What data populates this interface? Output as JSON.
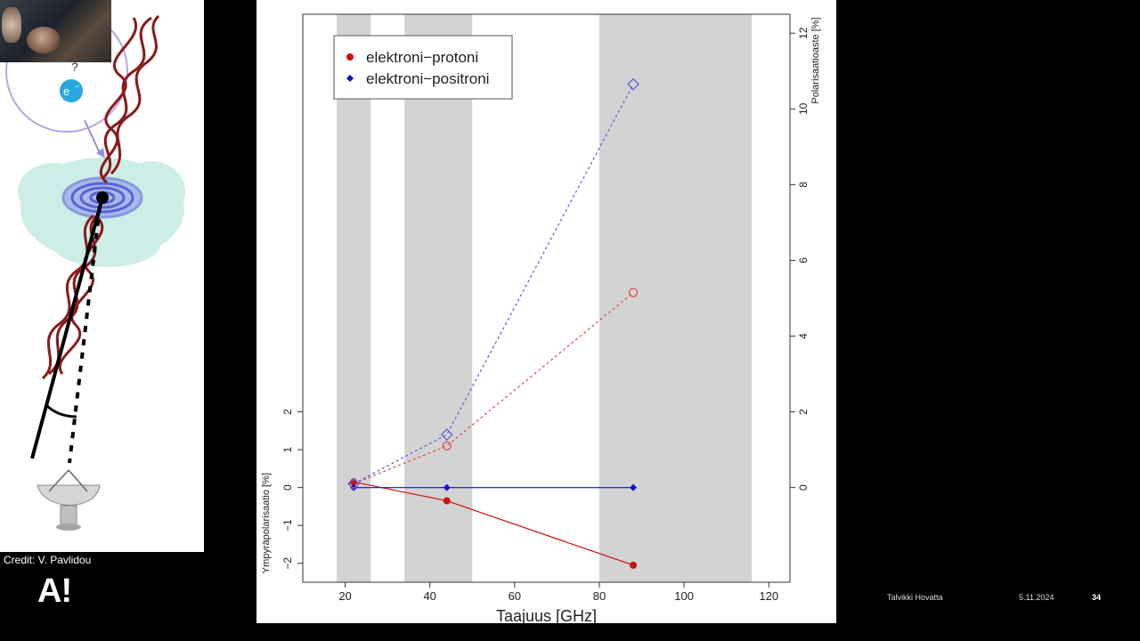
{
  "left_panel": {
    "electron_label": "e",
    "electron_sup": "−",
    "question_mark": "?",
    "credit": "Credit: V. Pavlidou",
    "logo": "A!"
  },
  "footer": {
    "author": "Talvikki Hovatta",
    "date": "5.11.2024",
    "page": "34"
  },
  "chart_data": {
    "type": "scatter",
    "xlabel": "Taajuus [GHz]",
    "ylabel_left": "Ympyräpolarisaatio [%]",
    "ylabel_right": "Polarisaatioaste [%]",
    "xlim": [
      10,
      125
    ],
    "x_ticks": [
      20,
      40,
      60,
      80,
      100,
      120
    ],
    "ylim_left": [
      -2.5,
      12.5
    ],
    "y_ticks_left": [
      -2,
      -1,
      0,
      1,
      2
    ],
    "ylim_right": [
      -2.5,
      12.5
    ],
    "y_ticks_right": [
      0,
      2,
      4,
      6,
      8,
      10,
      12
    ],
    "shaded_bands": [
      [
        18,
        26
      ],
      [
        34,
        50
      ],
      [
        80,
        116
      ]
    ],
    "legend_position": "top-left",
    "series": [
      {
        "name": "elektroni−protoni",
        "color": "#cc1111",
        "style": "solid",
        "marker": "filled-circle",
        "axis": "left",
        "x": [
          22,
          44,
          88
        ],
        "y": [
          0.15,
          -0.35,
          -2.05
        ]
      },
      {
        "name": "elektroni−positroni",
        "color": "#1111cc",
        "style": "solid",
        "marker": "filled-diamond",
        "axis": "left",
        "x": [
          22,
          44,
          88
        ],
        "y": [
          0.0,
          0.0,
          0.0
        ]
      },
      {
        "name": "",
        "color": "#d84a4a",
        "style": "dashed",
        "marker": "open-circle",
        "axis": "right",
        "x": [
          22,
          44,
          88
        ],
        "y": [
          0.1,
          1.1,
          5.15
        ]
      },
      {
        "name": "",
        "color": "#5a5ad8",
        "style": "dashed",
        "marker": "open-diamond",
        "axis": "right",
        "x": [
          22,
          44,
          88
        ],
        "y": [
          0.1,
          1.4,
          10.65
        ]
      }
    ]
  }
}
